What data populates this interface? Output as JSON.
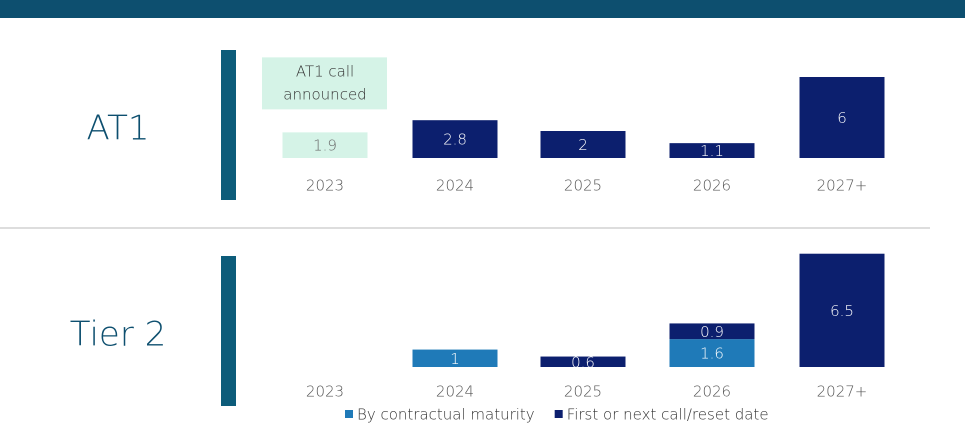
{
  "chart_data": [
    {
      "type": "bar",
      "title": "AT1",
      "categories": [
        "2023",
        "2024",
        "2025",
        "2026",
        "2027+"
      ],
      "series": [
        {
          "name": "First or next call/reset date",
          "color": "#0c1f6e",
          "colors": [
            "#d5f3e7",
            "#0c1f6e",
            "#0c1f6e",
            "#0c1f6e",
            "#0c1f6e"
          ],
          "values": [
            1.9,
            2.8,
            2.0,
            1.1,
            6.0
          ]
        }
      ],
      "annotation": "AT1 call announced",
      "ylim": [
        0,
        8
      ]
    },
    {
      "type": "bar",
      "title": "Tier 2",
      "stacked": true,
      "categories": [
        "2023",
        "2024",
        "2025",
        "2026",
        "2027+"
      ],
      "series": [
        {
          "name": "By contractual maturity",
          "color": "#1f7ab8",
          "values": [
            null,
            1.0,
            null,
            1.6,
            null
          ]
        },
        {
          "name": "First or next call/reset date",
          "color": "#0c1f6e",
          "values": [
            null,
            null,
            0.6,
            0.9,
            6.5
          ]
        }
      ],
      "ylim": [
        0,
        7
      ],
      "legend": true
    }
  ]
}
